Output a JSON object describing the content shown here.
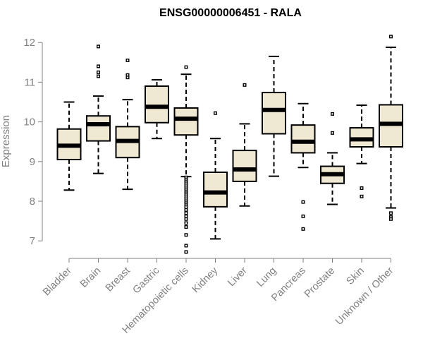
{
  "chart_data": {
    "type": "boxplot",
    "title": "ENSG00000006451 - RALA",
    "xlabel": "",
    "ylabel": "Expression",
    "ylim": [
      6.95,
      12.2
    ],
    "yticks": [
      7,
      8,
      9,
      10,
      11,
      12
    ],
    "box_color": "#efe8d2",
    "categories": [
      "Bladder",
      "Brain",
      "Breast",
      "Gastric",
      "Hematopoietic cells",
      "Kidney",
      "Liver",
      "Lung",
      "Pancreas",
      "Prostate",
      "Skin",
      "Unknown / Other"
    ],
    "boxes": [
      {
        "category": "Bladder",
        "whisker_low": 8.28,
        "q1": 9.05,
        "median": 9.4,
        "q3": 9.82,
        "whisker_high": 10.5,
        "outliers": []
      },
      {
        "category": "Brain",
        "whisker_low": 8.7,
        "q1": 9.52,
        "median": 9.94,
        "q3": 10.15,
        "whisker_high": 10.65,
        "outliers": [
          11.9,
          11.4,
          11.25,
          11.15
        ]
      },
      {
        "category": "Breast",
        "whisker_low": 8.3,
        "q1": 9.1,
        "median": 9.52,
        "q3": 9.88,
        "whisker_high": 10.56,
        "outliers": [
          11.55,
          11.18,
          11.12
        ]
      },
      {
        "category": "Gastric",
        "whisker_low": 9.58,
        "q1": 9.98,
        "median": 10.38,
        "q3": 10.9,
        "whisker_high": 11.06,
        "outliers": []
      },
      {
        "category": "Hematopoietic cells",
        "whisker_low": 8.62,
        "q1": 9.67,
        "median": 10.08,
        "q3": 10.35,
        "whisker_high": 11.2,
        "outliers": [
          11.38,
          8.6,
          8.55,
          8.5,
          8.45,
          8.4,
          8.35,
          8.3,
          8.25,
          8.2,
          8.15,
          8.1,
          8.05,
          8.0,
          7.95,
          7.9,
          7.85,
          7.78,
          7.7,
          7.62,
          7.55,
          7.45,
          7.35,
          7.15,
          6.88,
          6.72
        ]
      },
      {
        "category": "Kidney",
        "whisker_low": 7.05,
        "q1": 7.86,
        "median": 8.22,
        "q3": 8.73,
        "whisker_high": 9.58,
        "outliers": [
          10.22
        ]
      },
      {
        "category": "Liver",
        "whisker_low": 7.88,
        "q1": 8.5,
        "median": 8.8,
        "q3": 9.28,
        "whisker_high": 9.95,
        "outliers": [
          10.93
        ]
      },
      {
        "category": "Lung",
        "whisker_low": 8.63,
        "q1": 9.7,
        "median": 10.3,
        "q3": 10.74,
        "whisker_high": 11.65,
        "outliers": []
      },
      {
        "category": "Pancreas",
        "whisker_low": 8.85,
        "q1": 9.22,
        "median": 9.5,
        "q3": 9.92,
        "whisker_high": 10.46,
        "outliers": [
          7.98,
          7.62,
          7.3
        ]
      },
      {
        "category": "Prostate",
        "whisker_low": 7.92,
        "q1": 8.45,
        "median": 8.68,
        "q3": 8.88,
        "whisker_high": 9.22,
        "outliers": [
          10.2,
          9.72
        ]
      },
      {
        "category": "Skin",
        "whisker_low": 8.95,
        "q1": 9.37,
        "median": 9.56,
        "q3": 9.85,
        "whisker_high": 10.42,
        "outliers": [
          8.33,
          8.12
        ]
      },
      {
        "category": "Unknown / Other",
        "whisker_low": 7.83,
        "q1": 9.37,
        "median": 9.95,
        "q3": 10.43,
        "whisker_high": 11.88,
        "outliers": [
          12.15,
          7.7,
          7.6,
          7.55
        ]
      }
    ]
  }
}
